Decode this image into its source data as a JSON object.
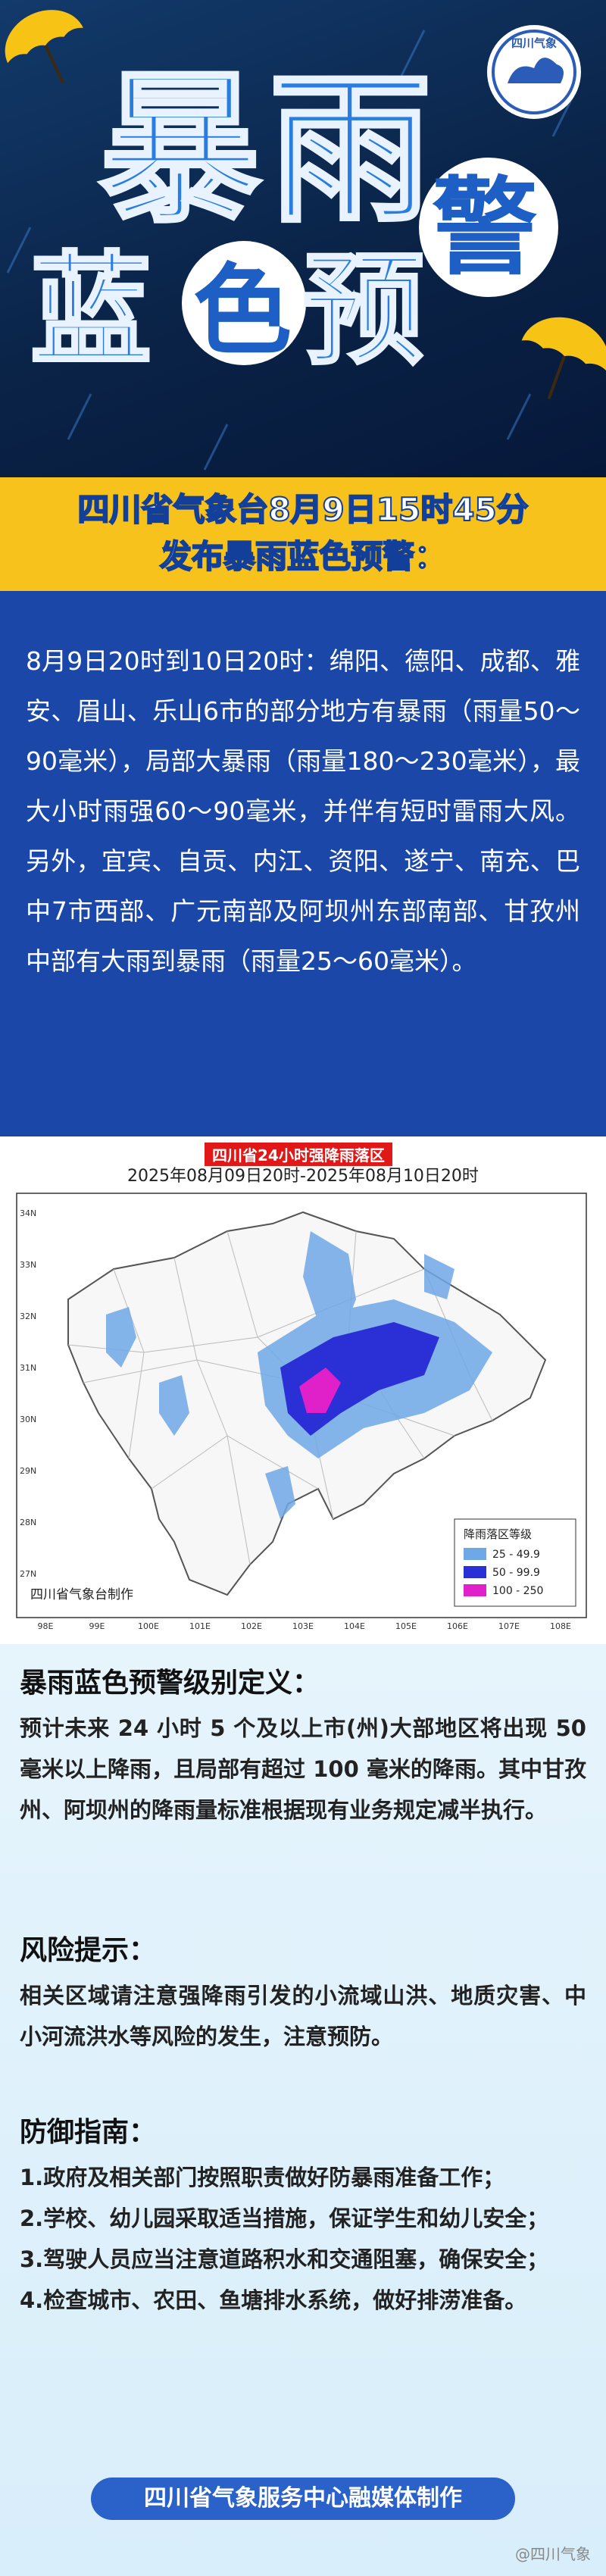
{
  "header": {
    "logo": "四川气象",
    "title_line1": "暴雨",
    "title_line2": [
      "蓝",
      "色",
      "预",
      "警"
    ]
  },
  "banner": {
    "line1": "四川省气象台8月9日15时45分",
    "line2": "发布暴雨蓝色预警："
  },
  "warning_text": "8月9日20时到10日20时：绵阳、德阳、成都、雅安、眉山、乐山6市的部分地方有暴雨（雨量50～90毫米），局部大暴雨（雨量180～230毫米），最大小时雨强60～90毫米，并伴有短时雷雨大风。另外，宜宾、自贡、内江、资阳、遂宁、南充、巴中7市西部、广元南部及阿坝州东部南部、甘孜州中部有大雨到暴雨（雨量25～60毫米）。",
  "map": {
    "title": "四川省24小时强降雨落区",
    "subtitle": "2025年08月09日20时-2025年08月10日20时",
    "credit": "四川省气象台制作",
    "lat_labels": [
      "34N",
      "33N",
      "32N",
      "31N",
      "30N",
      "29N",
      "28N",
      "27N"
    ],
    "lon_labels": [
      "98E",
      "99E",
      "100E",
      "101E",
      "102E",
      "103E",
      "104E",
      "105E",
      "106E",
      "107E",
      "108E"
    ],
    "legend": {
      "title": "降雨落区等级",
      "items": [
        {
          "label": "25 - 49.9",
          "color": "#6fa8e6"
        },
        {
          "label": "50 - 99.9",
          "color": "#2b2fd6"
        },
        {
          "label": "100 - 250",
          "color": "#e020c8"
        }
      ]
    }
  },
  "definition": {
    "heading": "暴雨蓝色预警级别定义：",
    "text": "预计未来 24 小时 5 个及以上市(州)大部地区将出现 50 毫米以上降雨，且局部有超过 100 毫米的降雨。其中甘孜州、阿坝州的降雨量标准根据现有业务规定减半执行。"
  },
  "risk": {
    "heading": "风险提示：",
    "text": "相关区域请注意强降雨引发的小流域山洪、地质灾害、中小河流洪水等风险的发生，注意预防。"
  },
  "guide": {
    "heading": "防御指南：",
    "items": [
      "1.政府及相关部门按照职责做好防暴雨准备工作；",
      "2.学校、幼儿园采取适当措施，保证学生和幼儿安全；",
      "3.驾驶人员应当注意道路积水和交通阻塞，确保安全；",
      "4.检查城市、农田、鱼塘排水系统，做好排涝准备。"
    ]
  },
  "footer": "四川省气象服务中心融媒体制作",
  "watermark": "@四川气象"
}
